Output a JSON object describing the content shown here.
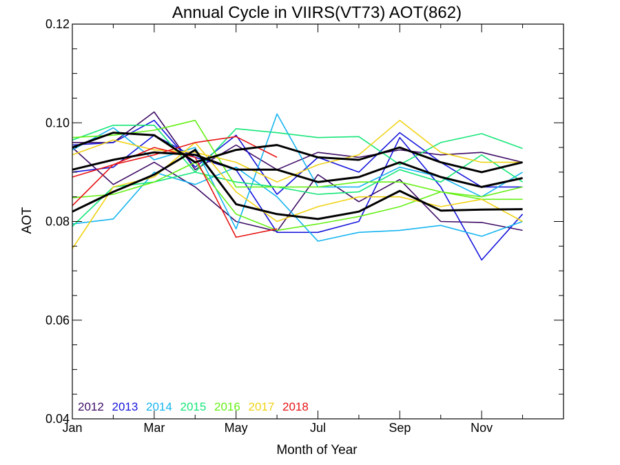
{
  "chart_data": {
    "type": "line",
    "title": "Annual Cycle in VIIRS(VT73) AOT(862)",
    "xlabel": "Month of Year",
    "ylabel": "AOT",
    "xlim": [
      1,
      13
    ],
    "ylim": [
      0.04,
      0.12
    ],
    "x_ticks": [
      {
        "value": 1,
        "label": "Jan"
      },
      {
        "value": 3,
        "label": "Mar"
      },
      {
        "value": 5,
        "label": "May"
      },
      {
        "value": 7,
        "label": "Jul"
      },
      {
        "value": 9,
        "label": "Sep"
      },
      {
        "value": 11,
        "label": "Nov"
      }
    ],
    "x_minor_ticks": [
      2,
      4,
      6,
      8,
      10,
      12
    ],
    "y_ticks": [
      {
        "value": 0.04,
        "label": "0.04"
      },
      {
        "value": 0.06,
        "label": "0.06"
      },
      {
        "value": 0.08,
        "label": "0.08"
      },
      {
        "value": 0.1,
        "label": "0.10"
      },
      {
        "value": 0.12,
        "label": "0.12"
      }
    ],
    "y_minor_ticks": [
      0.045,
      0.05,
      0.055,
      0.065,
      0.07,
      0.075,
      0.085,
      0.09,
      0.095,
      0.105,
      0.11,
      0.115
    ],
    "grid": false,
    "legend_position": "bottom-left",
    "x": [
      1,
      2,
      3,
      4,
      5,
      6,
      7,
      8,
      9,
      10,
      11,
      12
    ],
    "series": [
      {
        "name": "2012",
        "color": "#3c0a64",
        "lines": [
          [
            0.096,
            0.096,
            0.1022,
            0.0905,
            0.0955,
            0.0905,
            0.094,
            0.093,
            0.0945,
            0.0935,
            0.094,
            0.092
          ],
          [
            0.095,
            0.0875,
            0.092,
            0.087,
            0.08,
            0.078,
            0.0895,
            0.084,
            0.0885,
            0.08,
            0.0798,
            0.0782
          ]
        ]
      },
      {
        "name": "2013",
        "color": "#1414dc",
        "lines": [
          [
            0.0955,
            0.096,
            0.1005,
            0.091,
            0.0975,
            0.0855,
            0.093,
            0.09,
            0.098,
            0.092,
            0.087,
            0.087
          ],
          [
            0.09,
            0.091,
            0.0975,
            0.093,
            0.0905,
            0.0778,
            0.0778,
            0.08,
            0.097,
            0.087,
            0.0722,
            0.0815
          ]
        ]
      },
      {
        "name": "2014",
        "color": "#14b4f0",
        "lines": [
          [
            0.0945,
            0.099,
            0.0925,
            0.095,
            0.0785,
            0.1018,
            0.087,
            0.087,
            0.091,
            0.089,
            0.085,
            0.09
          ],
          [
            0.0795,
            0.0805,
            0.09,
            0.0875,
            0.091,
            0.085,
            0.076,
            0.0778,
            0.0782,
            0.0792,
            0.077,
            0.08
          ]
        ]
      },
      {
        "name": "2015",
        "color": "#14e678",
        "lines": [
          [
            0.0965,
            0.0995,
            0.0995,
            0.09,
            0.0988,
            0.098,
            0.097,
            0.0972,
            0.0915,
            0.096,
            0.0978,
            0.0948
          ],
          [
            0.079,
            0.087,
            0.088,
            0.09,
            0.088,
            0.087,
            0.0855,
            0.086,
            0.0905,
            0.088,
            0.0935,
            0.088
          ]
        ]
      },
      {
        "name": "2016",
        "color": "#64f014",
        "lines": [
          [
            0.097,
            0.0975,
            0.0985,
            0.1005,
            0.087,
            0.087,
            0.087,
            0.088,
            0.088,
            0.086,
            0.085,
            0.087
          ],
          [
            0.0848,
            0.0855,
            0.088,
            0.092,
            0.0815,
            0.0782,
            0.0795,
            0.081,
            0.083,
            0.086,
            0.0845,
            0.0845
          ]
        ]
      },
      {
        "name": "2017",
        "color": "#f0d214",
        "lines": [
          [
            0.0935,
            0.0965,
            0.0945,
            0.094,
            0.092,
            0.088,
            0.0915,
            0.0935,
            0.1005,
            0.094,
            0.092,
            0.092
          ],
          [
            0.0745,
            0.087,
            0.089,
            0.096,
            0.086,
            0.08,
            0.083,
            0.085,
            0.085,
            0.083,
            0.0845,
            0.08
          ]
        ]
      },
      {
        "name": "2018",
        "color": "#e61414",
        "lines": [
          [
            0.089,
            0.0915,
            0.0935,
            0.096,
            0.0972,
            0.093
          ],
          [
            0.0832,
            0.0915,
            0.095,
            0.093,
            0.0768,
            0.0785
          ]
        ]
      },
      {
        "name": "",
        "color": "#000000",
        "thick": true,
        "lines": [
          [
            0.095,
            0.098,
            0.0975,
            0.092,
            0.0945,
            0.0955,
            0.093,
            0.0925,
            0.095,
            0.092,
            0.09,
            0.092
          ],
          [
            0.0905,
            0.0925,
            0.094,
            0.0935,
            0.0905,
            0.0905,
            0.088,
            0.089,
            0.092,
            0.089,
            0.087,
            0.0888
          ],
          [
            0.082,
            0.086,
            0.0895,
            0.0945,
            0.0835,
            0.0815,
            0.0805,
            0.082,
            0.0862,
            0.0822,
            0.0824,
            0.0825
          ]
        ]
      }
    ]
  }
}
